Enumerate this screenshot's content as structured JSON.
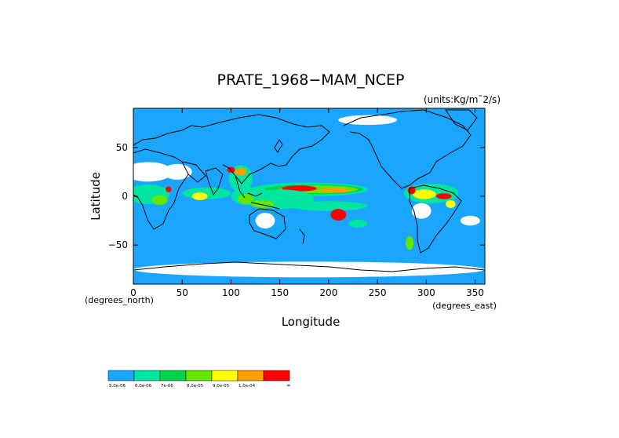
{
  "chart_data": {
    "type": "heatmap",
    "title": "PRATE_1968−MAM_NCEP",
    "units": "(units:Kg/m¯2/s)",
    "xlabel": "Longitude",
    "ylabel": "Latitude",
    "x_unit_label": "(degrees_east)",
    "y_unit_label": "(degrees_north)",
    "xlim": [
      0,
      360
    ],
    "ylim": [
      -90,
      90
    ],
    "x_ticks": [
      "0",
      "50",
      "100",
      "150",
      "200",
      "250",
      "300",
      "350"
    ],
    "x_tick_values": [
      0,
      50,
      100,
      150,
      200,
      250,
      300,
      350
    ],
    "y_ticks": [
      "50",
      "0",
      "−50"
    ],
    "y_tick_values": [
      50,
      0,
      -50
    ],
    "background_color": "#1aa6ff",
    "legend": [
      {
        "label": "5.0e-06",
        "color": "#1aa6ff"
      },
      {
        "label": "6.0e-06",
        "color": "#00e6a0"
      },
      {
        "label": "7e-06",
        "color": "#00d24b"
      },
      {
        "label": "8.0e-05",
        "color": "#64e600"
      },
      {
        "label": "9.0e-05",
        "color": "#ffff00"
      },
      {
        "label": "1.0e-04",
        "color": "#ffa000"
      },
      {
        "label": "",
        "color": "#ff0000"
      }
    ],
    "legend_end_label": "∞",
    "regions": [
      {
        "lon": 180,
        "lat": 7,
        "rx": 60,
        "ry": 7,
        "level": 1
      },
      {
        "lon": 185,
        "lat": 7,
        "rx": 50,
        "ry": 5,
        "level": 2
      },
      {
        "lon": 190,
        "lat": 7,
        "rx": 40,
        "ry": 4,
        "level": 3
      },
      {
        "lon": 170,
        "lat": 8,
        "rx": 18,
        "ry": 3,
        "level": 6
      },
      {
        "lon": 207,
        "lat": 6,
        "rx": 18,
        "ry": 2,
        "level": 5
      },
      {
        "lon": 150,
        "lat": -3,
        "rx": 35,
        "ry": 10,
        "level": 1
      },
      {
        "lon": 200,
        "lat": -10,
        "rx": 40,
        "ry": 5,
        "level": 1
      },
      {
        "lon": 210,
        "lat": -19,
        "rx": 8,
        "ry": 6,
        "level": 6
      },
      {
        "lon": 118,
        "lat": 0,
        "rx": 18,
        "ry": 9,
        "level": 1
      },
      {
        "lon": 115,
        "lat": -3,
        "rx": 8,
        "ry": 5,
        "level": 3
      },
      {
        "lon": 132,
        "lat": -8,
        "rx": 12,
        "ry": 4,
        "level": 3
      },
      {
        "lon": 110,
        "lat": 18,
        "rx": 12,
        "ry": 14,
        "level": 1
      },
      {
        "lon": 110,
        "lat": 25,
        "rx": 6,
        "ry": 4,
        "level": 5
      },
      {
        "lon": 100,
        "lat": 27,
        "rx": 4,
        "ry": 3,
        "level": 6
      },
      {
        "lon": 75,
        "lat": 3,
        "rx": 25,
        "ry": 6,
        "level": 1
      },
      {
        "lon": 68,
        "lat": 0,
        "rx": 8,
        "ry": 4,
        "level": 4
      },
      {
        "lon": 15,
        "lat": 2,
        "rx": 22,
        "ry": 10,
        "level": 1
      },
      {
        "lon": 27,
        "lat": -4,
        "rx": 8,
        "ry": 5,
        "level": 3
      },
      {
        "lon": 36,
        "lat": 7,
        "rx": 3,
        "ry": 3,
        "level": 6
      },
      {
        "lon": 305,
        "lat": 3,
        "rx": 28,
        "ry": 10,
        "level": 1
      },
      {
        "lon": 298,
        "lat": 2,
        "rx": 12,
        "ry": 5,
        "level": 4
      },
      {
        "lon": 318,
        "lat": 0,
        "rx": 8,
        "ry": 3,
        "level": 6
      },
      {
        "lon": 285,
        "lat": 6,
        "rx": 4,
        "ry": 4,
        "level": 6
      },
      {
        "lon": 325,
        "lat": -8,
        "rx": 5,
        "ry": 4,
        "level": 4
      },
      {
        "lon": 283,
        "lat": -48,
        "rx": 4,
        "ry": 7,
        "level": 3
      },
      {
        "lon": 230,
        "lat": -28,
        "rx": 10,
        "ry": 4,
        "level": 1
      }
    ],
    "dry_regions": [
      {
        "lon": 15,
        "lat": 25,
        "rx": 25,
        "ry": 10
      },
      {
        "lon": 45,
        "lat": 25,
        "rx": 15,
        "ry": 8
      },
      {
        "lon": 295,
        "lat": -15,
        "rx": 10,
        "ry": 8
      },
      {
        "lon": 345,
        "lat": -25,
        "rx": 10,
        "ry": 5
      },
      {
        "lon": 135,
        "lat": -25,
        "rx": 10,
        "ry": 8
      },
      {
        "lon": 180,
        "lat": -75,
        "rx": 180,
        "ry": 8
      },
      {
        "lon": 240,
        "lat": 78,
        "rx": 30,
        "ry": 5
      }
    ]
  }
}
